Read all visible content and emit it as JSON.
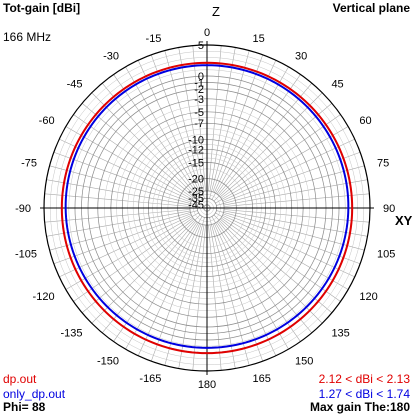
{
  "header": {
    "quantity": "Tot-gain [dBi]",
    "plane": "Vertical plane",
    "frequency": "166 MHz"
  },
  "footer": {
    "phi": "Phi= 88",
    "max_gain": "Max gain The:180"
  },
  "legend": [
    {
      "name": "dp.out",
      "color": "#e00000",
      "range_text": "2.12 < dBi < 2.13"
    },
    {
      "name": "only_dp.out",
      "color": "#0000e0",
      "range_text": "1.27 < dBi < 1.74"
    }
  ],
  "axis_labels": {
    "z": "Z",
    "xy": "XY"
  },
  "chart_data": {
    "type": "polar",
    "title": "Tot-gain [dBi]",
    "subtitle": "Vertical plane",
    "radial_unit": "dBi",
    "radial_ticks": [
      5,
      0,
      -1,
      -2,
      -3,
      -5,
      -7,
      -10,
      -12,
      -15,
      -20,
      -25,
      -35,
      -45
    ],
    "angle_ticks": [
      0,
      15,
      30,
      45,
      60,
      75,
      90,
      105,
      120,
      135,
      150,
      165,
      180,
      -165,
      -150,
      -135,
      -120,
      -105,
      -90,
      -75,
      -60,
      -45,
      -30,
      -15
    ],
    "angle_tick_labels": [
      "0",
      "15",
      "30",
      "45",
      "60",
      "75",
      "90",
      "105",
      "120",
      "135",
      "150",
      "165",
      "180",
      "-165",
      "-150",
      "-135",
      "-120",
      "-105",
      "-90",
      "-75",
      "-60",
      "-45",
      "-30",
      "-15"
    ],
    "radial_range": [
      -45,
      5
    ],
    "grid": true,
    "series": [
      {
        "name": "dp.out",
        "color": "#e00000",
        "min_dBi": 2.12,
        "max_dBi": 2.13
      },
      {
        "name": "only_dp.out",
        "color": "#0000e0",
        "min_dBi": 1.27,
        "max_dBi": 1.74
      }
    ]
  }
}
